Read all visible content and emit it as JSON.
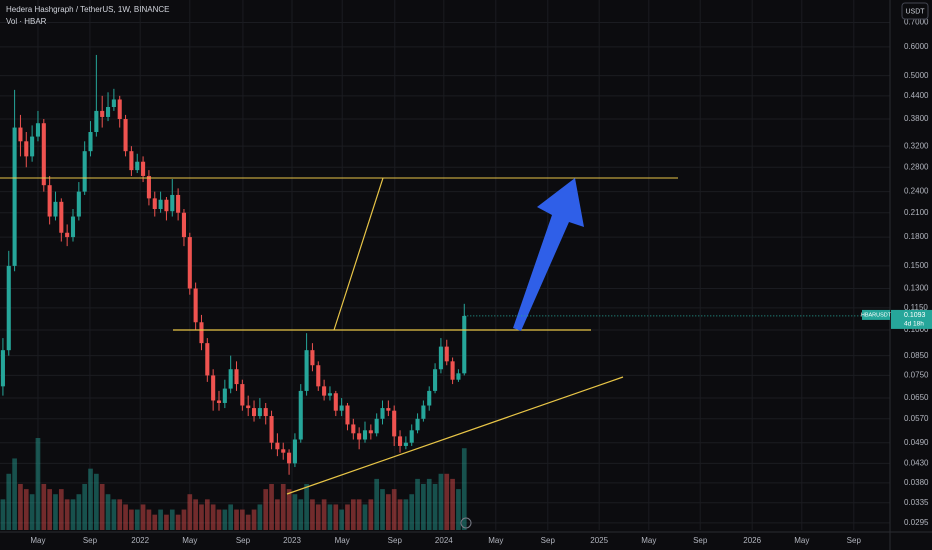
{
  "chart_data": {
    "type": "candlestick",
    "title": "Hedera Hashgraph / TetherUS, 1W, BINANCE",
    "volume_label": "Vol · HBAR",
    "currency": "USDT",
    "symbol": "HBARUSDT",
    "countdown": "4d 18h",
    "log": true,
    "grid": true,
    "up_color": "#26a69a",
    "down_color": "#ef5350",
    "open": [
      0.07,
      0.088,
      0.15,
      0.36,
      0.33,
      0.3,
      0.34,
      0.37,
      0.25,
      0.205,
      0.225,
      0.185,
      0.18,
      0.205,
      0.24,
      0.31,
      0.35,
      0.4,
      0.385,
      0.41,
      0.43,
      0.38,
      0.31,
      0.275,
      0.29,
      0.265,
      0.23,
      0.215,
      0.228,
      0.212,
      0.235,
      0.21,
      0.18,
      0.13,
      0.105,
      0.092,
      0.075,
      0.064,
      0.063,
      0.069,
      0.078,
      0.071,
      0.062,
      0.061,
      0.058,
      0.061,
      0.058,
      0.049,
      0.047,
      0.046,
      0.043,
      0.05,
      0.068,
      0.088,
      0.08,
      0.07,
      0.066,
      0.067,
      0.06,
      0.062,
      0.055,
      0.052,
      0.05,
      0.053,
      0.052,
      0.057,
      0.061,
      0.06,
      0.051,
      0.048,
      0.049,
      0.053,
      0.057,
      0.062,
      0.068,
      0.078,
      0.09,
      0.082,
      0.073,
      0.076
    ],
    "high": [
      0.095,
      0.165,
      0.457,
      0.39,
      0.35,
      0.365,
      0.4,
      0.38,
      0.265,
      0.24,
      0.23,
      0.195,
      0.215,
      0.255,
      0.33,
      0.375,
      0.57,
      0.44,
      0.45,
      0.46,
      0.44,
      0.39,
      0.32,
      0.305,
      0.3,
      0.275,
      0.24,
      0.24,
      0.232,
      0.26,
      0.245,
      0.215,
      0.185,
      0.135,
      0.11,
      0.095,
      0.078,
      0.068,
      0.073,
      0.085,
      0.082,
      0.073,
      0.066,
      0.064,
      0.065,
      0.063,
      0.06,
      0.052,
      0.049,
      0.047,
      0.052,
      0.071,
      0.098,
      0.092,
      0.082,
      0.073,
      0.07,
      0.068,
      0.065,
      0.063,
      0.057,
      0.054,
      0.056,
      0.055,
      0.059,
      0.064,
      0.064,
      0.062,
      0.053,
      0.051,
      0.055,
      0.059,
      0.064,
      0.07,
      0.081,
      0.095,
      0.094,
      0.084,
      0.078,
      0.118
    ],
    "low": [
      0.066,
      0.085,
      0.145,
      0.3,
      0.28,
      0.29,
      0.33,
      0.24,
      0.195,
      0.2,
      0.175,
      0.17,
      0.175,
      0.2,
      0.235,
      0.3,
      0.34,
      0.36,
      0.375,
      0.4,
      0.36,
      0.3,
      0.265,
      0.27,
      0.255,
      0.22,
      0.205,
      0.21,
      0.2,
      0.205,
      0.2,
      0.17,
      0.125,
      0.1,
      0.088,
      0.072,
      0.06,
      0.06,
      0.061,
      0.067,
      0.068,
      0.06,
      0.058,
      0.056,
      0.057,
      0.055,
      0.047,
      0.045,
      0.044,
      0.04,
      0.042,
      0.049,
      0.066,
      0.077,
      0.068,
      0.064,
      0.064,
      0.058,
      0.058,
      0.053,
      0.05,
      0.047,
      0.049,
      0.05,
      0.051,
      0.055,
      0.058,
      0.048,
      0.046,
      0.047,
      0.048,
      0.052,
      0.056,
      0.06,
      0.067,
      0.076,
      0.08,
      0.071,
      0.072,
      0.075
    ],
    "close": [
      0.088,
      0.15,
      0.36,
      0.33,
      0.3,
      0.34,
      0.37,
      0.25,
      0.205,
      0.225,
      0.185,
      0.18,
      0.205,
      0.24,
      0.31,
      0.35,
      0.4,
      0.385,
      0.41,
      0.43,
      0.38,
      0.31,
      0.275,
      0.29,
      0.265,
      0.23,
      0.215,
      0.228,
      0.212,
      0.235,
      0.21,
      0.18,
      0.13,
      0.105,
      0.092,
      0.075,
      0.064,
      0.063,
      0.069,
      0.078,
      0.071,
      0.062,
      0.061,
      0.058,
      0.061,
      0.058,
      0.049,
      0.047,
      0.046,
      0.043,
      0.05,
      0.068,
      0.088,
      0.08,
      0.07,
      0.066,
      0.067,
      0.06,
      0.062,
      0.055,
      0.052,
      0.05,
      0.053,
      0.052,
      0.057,
      0.061,
      0.06,
      0.051,
      0.048,
      0.049,
      0.053,
      0.057,
      0.062,
      0.068,
      0.078,
      0.09,
      0.082,
      0.073,
      0.076,
      0.1093
    ],
    "volume": [
      30,
      55,
      70,
      45,
      40,
      35,
      90,
      45,
      40,
      35,
      40,
      30,
      30,
      35,
      45,
      60,
      55,
      45,
      35,
      30,
      30,
      25,
      20,
      20,
      25,
      20,
      15,
      20,
      15,
      20,
      15,
      20,
      35,
      30,
      25,
      30,
      25,
      20,
      20,
      25,
      20,
      20,
      15,
      20,
      25,
      40,
      45,
      30,
      45,
      40,
      35,
      30,
      45,
      30,
      25,
      30,
      25,
      25,
      20,
      25,
      30,
      30,
      25,
      30,
      50,
      40,
      35,
      40,
      30,
      30,
      35,
      50,
      45,
      50,
      45,
      55,
      55,
      50,
      40,
      80
    ],
    "xlim": [
      -0.5,
      151.9
    ],
    "xticks": [
      {
        "value": 6.0,
        "label": "May"
      },
      {
        "value": 14.9,
        "label": "Sep"
      },
      {
        "value": 23.5,
        "label": "2022"
      },
      {
        "value": 32.0,
        "label": "May"
      },
      {
        "value": 41.1,
        "label": "Sep"
      },
      {
        "value": 49.5,
        "label": "2023"
      },
      {
        "value": 58.1,
        "label": "May"
      },
      {
        "value": 67.1,
        "label": "Sep"
      },
      {
        "value": 75.5,
        "label": "2024"
      },
      {
        "value": 84.4,
        "label": "May"
      },
      {
        "value": 93.3,
        "label": "Sep"
      },
      {
        "value": 102.1,
        "label": "2025"
      },
      {
        "value": 110.6,
        "label": "May"
      },
      {
        "value": 119.4,
        "label": "Sep"
      },
      {
        "value": 128.3,
        "label": "2026"
      },
      {
        "value": 136.8,
        "label": "May"
      },
      {
        "value": 145.7,
        "label": "Sep"
      }
    ],
    "ylim": [
      0.0282,
      0.807
    ],
    "yticks": [
      {
        "value": 0.7,
        "label": "0.7000"
      },
      {
        "value": 0.6,
        "label": "0.6000"
      },
      {
        "value": 0.5,
        "label": "0.5000"
      },
      {
        "value": 0.44,
        "label": "0.4400"
      },
      {
        "value": 0.38,
        "label": "0.3800"
      },
      {
        "value": 0.32,
        "label": "0.3200"
      },
      {
        "value": 0.28,
        "label": "0.2800"
      },
      {
        "value": 0.24,
        "label": "0.2400"
      },
      {
        "value": 0.21,
        "label": "0.2100"
      },
      {
        "value": 0.18,
        "label": "0.1800"
      },
      {
        "value": 0.15,
        "label": "0.1500"
      },
      {
        "value": 0.13,
        "label": "0.1300"
      },
      {
        "value": 0.115,
        "label": "0.1150"
      },
      {
        "value": 0.1,
        "label": "0.1000"
      },
      {
        "value": 0.085,
        "label": "0.0850"
      },
      {
        "value": 0.075,
        "label": "0.0750"
      },
      {
        "value": 0.065,
        "label": "0.0650"
      },
      {
        "value": 0.057,
        "label": "0.0570"
      },
      {
        "value": 0.049,
        "label": "0.0490"
      },
      {
        "value": 0.043,
        "label": "0.0430"
      },
      {
        "value": 0.038,
        "label": "0.0380"
      },
      {
        "value": 0.0335,
        "label": "0.0335"
      },
      {
        "value": 0.0295,
        "label": "0.0295"
      }
    ]
  }
}
